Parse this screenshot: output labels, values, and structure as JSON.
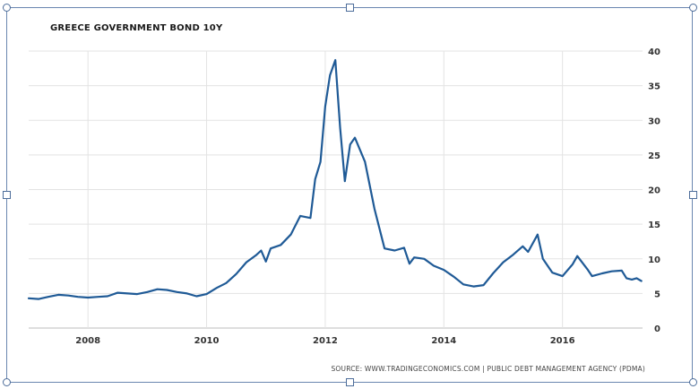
{
  "chart_data": {
    "type": "line",
    "title": "GREECE GOVERNMENT BOND 10Y",
    "source": "SOURCE: WWW.TRADINGECONOMICS.COM | PUBLIC DEBT MANAGEMENT AGENCY (PDMA)",
    "xlabel": "",
    "ylabel": "",
    "xlim": [
      2007.0,
      2017.35
    ],
    "ylim": [
      0,
      40
    ],
    "x_ticks": [
      2008,
      2010,
      2012,
      2014,
      2016
    ],
    "x_tick_labels": [
      "2008",
      "2010",
      "2012",
      "2014",
      "2016"
    ],
    "y_ticks": [
      0,
      5,
      10,
      15,
      20,
      25,
      30,
      35,
      40
    ],
    "y_tick_labels": [
      "0",
      "5",
      "10",
      "15",
      "20",
      "25",
      "30",
      "35",
      "40"
    ],
    "grid": true,
    "legend": "none",
    "line_color": "#1f5a96",
    "series": [
      {
        "values": [
          [
            2007.0,
            4.3
          ],
          [
            2007.17,
            4.2
          ],
          [
            2007.33,
            4.5
          ],
          [
            2007.5,
            4.8
          ],
          [
            2007.67,
            4.7
          ],
          [
            2007.83,
            4.5
          ],
          [
            2008.0,
            4.4
          ],
          [
            2008.17,
            4.5
          ],
          [
            2008.33,
            4.6
          ],
          [
            2008.5,
            5.1
          ],
          [
            2008.67,
            5.0
          ],
          [
            2008.83,
            4.9
          ],
          [
            2009.0,
            5.2
          ],
          [
            2009.17,
            5.6
          ],
          [
            2009.33,
            5.5
          ],
          [
            2009.5,
            5.2
          ],
          [
            2009.67,
            5.0
          ],
          [
            2009.83,
            4.6
          ],
          [
            2010.0,
            4.9
          ],
          [
            2010.17,
            5.8
          ],
          [
            2010.33,
            6.5
          ],
          [
            2010.5,
            7.8
          ],
          [
            2010.67,
            9.5
          ],
          [
            2010.83,
            10.5
          ],
          [
            2010.92,
            11.2
          ],
          [
            2011.0,
            9.6
          ],
          [
            2011.08,
            11.5
          ],
          [
            2011.25,
            12.0
          ],
          [
            2011.42,
            13.5
          ],
          [
            2011.58,
            16.2
          ],
          [
            2011.75,
            15.9
          ],
          [
            2011.83,
            21.5
          ],
          [
            2011.92,
            24.0
          ],
          [
            2012.0,
            32.0
          ],
          [
            2012.08,
            36.5
          ],
          [
            2012.17,
            38.7
          ],
          [
            2012.25,
            29.0
          ],
          [
            2012.33,
            21.2
          ],
          [
            2012.42,
            26.5
          ],
          [
            2012.5,
            27.5
          ],
          [
            2012.67,
            24.0
          ],
          [
            2012.83,
            17.2
          ],
          [
            2013.0,
            11.5
          ],
          [
            2013.17,
            11.2
          ],
          [
            2013.33,
            11.6
          ],
          [
            2013.42,
            9.3
          ],
          [
            2013.5,
            10.2
          ],
          [
            2013.67,
            10.0
          ],
          [
            2013.83,
            9.0
          ],
          [
            2014.0,
            8.4
          ],
          [
            2014.17,
            7.4
          ],
          [
            2014.33,
            6.3
          ],
          [
            2014.5,
            6.0
          ],
          [
            2014.67,
            6.2
          ],
          [
            2014.83,
            7.9
          ],
          [
            2015.0,
            9.5
          ],
          [
            2015.17,
            10.6
          ],
          [
            2015.33,
            11.8
          ],
          [
            2015.42,
            11.0
          ],
          [
            2015.58,
            13.5
          ],
          [
            2015.67,
            10.0
          ],
          [
            2015.83,
            8.0
          ],
          [
            2016.0,
            7.5
          ],
          [
            2016.17,
            9.2
          ],
          [
            2016.25,
            10.4
          ],
          [
            2016.42,
            8.5
          ],
          [
            2016.5,
            7.5
          ],
          [
            2016.67,
            7.9
          ],
          [
            2016.83,
            8.2
          ],
          [
            2017.0,
            8.3
          ],
          [
            2017.08,
            7.2
          ],
          [
            2017.17,
            7.0
          ],
          [
            2017.25,
            7.2
          ],
          [
            2017.33,
            6.8
          ]
        ]
      }
    ]
  }
}
